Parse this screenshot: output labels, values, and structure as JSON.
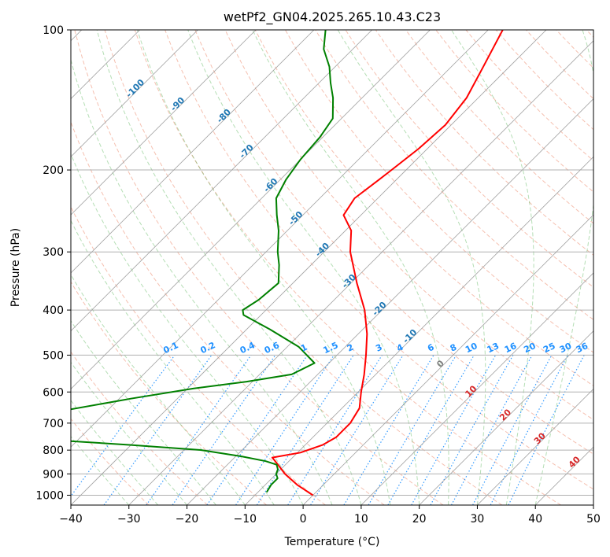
{
  "chart_data": {
    "type": "line",
    "title": "wetPf2_GN04.2025.265.10.43.C23",
    "xlabel": "Temperature (°C)",
    "ylabel": "Pressure (hPa)",
    "xlim": [
      -40,
      50
    ],
    "ylim": [
      1050,
      100
    ],
    "y_scale": "log",
    "x_ticks": [
      "−40",
      "−30",
      "−20",
      "−10",
      "0",
      "10",
      "20",
      "30",
      "40",
      "50"
    ],
    "y_ticks": [
      "100",
      "200",
      "300",
      "400",
      "500",
      "600",
      "700",
      "800",
      "900",
      "1000"
    ],
    "grid": true,
    "series": [
      {
        "role": "temperature",
        "color": "#ff0000",
        "points": [
          {
            "p": 1000,
            "t": 0
          },
          {
            "p": 950,
            "t": -4.5
          },
          {
            "p": 900,
            "t": -8.5
          },
          {
            "p": 850,
            "t": -12
          },
          {
            "p": 830,
            "t": -13.5
          },
          {
            "p": 810,
            "t": -9.5
          },
          {
            "p": 780,
            "t": -7
          },
          {
            "p": 750,
            "t": -6
          },
          {
            "p": 700,
            "t": -6
          },
          {
            "p": 650,
            "t": -7
          },
          {
            "p": 600,
            "t": -9.5
          },
          {
            "p": 550,
            "t": -12
          },
          {
            "p": 500,
            "t": -15
          },
          {
            "p": 450,
            "t": -18.5
          },
          {
            "p": 400,
            "t": -23
          },
          {
            "p": 350,
            "t": -29
          },
          {
            "p": 300,
            "t": -35.5
          },
          {
            "p": 270,
            "t": -39
          },
          {
            "p": 250,
            "t": -43
          },
          {
            "p": 230,
            "t": -44
          },
          {
            "p": 210,
            "t": -43
          },
          {
            "p": 200,
            "t": -42.5
          },
          {
            "p": 180,
            "t": -41.5
          },
          {
            "p": 160,
            "t": -41
          },
          {
            "p": 140,
            "t": -42
          },
          {
            "p": 120,
            "t": -44.5
          },
          {
            "p": 100,
            "t": -47.5
          }
        ]
      },
      {
        "role": "dewpoint",
        "color": "#008000",
        "points": [
          {
            "p": 985,
            "t": -8.5
          },
          {
            "p": 950,
            "t": -9
          },
          {
            "p": 920,
            "t": -9
          },
          {
            "p": 900,
            "t": -10
          },
          {
            "p": 880,
            "t": -10.5
          },
          {
            "p": 860,
            "t": -11.5
          },
          {
            "p": 845,
            "t": -14
          },
          {
            "p": 825,
            "t": -19
          },
          {
            "p": 800,
            "t": -27
          },
          {
            "p": 780,
            "t": -40
          },
          {
            "p": 760,
            "t": -55
          },
          {
            "p": 720,
            "t": -60
          },
          {
            "p": 680,
            "t": -60
          },
          {
            "p": 660,
            "t": -58
          },
          {
            "p": 620,
            "t": -48
          },
          {
            "p": 590,
            "t": -39
          },
          {
            "p": 570,
            "t": -31
          },
          {
            "p": 550,
            "t": -24.5
          },
          {
            "p": 520,
            "t": -22.5
          },
          {
            "p": 480,
            "t": -28
          },
          {
            "p": 440,
            "t": -36
          },
          {
            "p": 410,
            "t": -43
          },
          {
            "p": 400,
            "t": -44
          },
          {
            "p": 380,
            "t": -43
          },
          {
            "p": 350,
            "t": -42.5
          },
          {
            "p": 320,
            "t": -45.5
          },
          {
            "p": 300,
            "t": -48
          },
          {
            "p": 270,
            "t": -51.5
          },
          {
            "p": 250,
            "t": -54.5
          },
          {
            "p": 230,
            "t": -57.5
          },
          {
            "p": 210,
            "t": -59
          },
          {
            "p": 190,
            "t": -60
          },
          {
            "p": 170,
            "t": -60.5
          },
          {
            "p": 155,
            "t": -61.5
          },
          {
            "p": 140,
            "t": -65
          },
          {
            "p": 130,
            "t": -68
          },
          {
            "p": 120,
            "t": -71
          },
          {
            "p": 110,
            "t": -75
          },
          {
            "p": 100,
            "t": -78
          }
        ]
      }
    ],
    "isotherm_labels": [
      "-100",
      "-90",
      "-80",
      "-70",
      "-60",
      "-50",
      "-40",
      "-30",
      "-20",
      "-10",
      "0",
      "10",
      "20",
      "30",
      "40"
    ],
    "mixing_ratio_labels": [
      "0.1",
      "0.2",
      "0.4",
      "0.6",
      "1",
      "1.5",
      "2",
      "3",
      "4",
      "6",
      "8",
      "10",
      "13",
      "16",
      "20",
      "25",
      "30",
      "36"
    ],
    "colors": {
      "isotherm_cold": "#1f77b4",
      "isotherm_zero": "#808080",
      "isotherm_warm": "#d62728",
      "mixing_ratio": "#1e90ff",
      "dry_adiabat": "#e8744f",
      "moist_adiabat": "#2ca02c",
      "isobar": "#b0b0b0",
      "skewed_isotherm": "#a0a0a0",
      "accent_isotherm": "#d2a679"
    }
  }
}
